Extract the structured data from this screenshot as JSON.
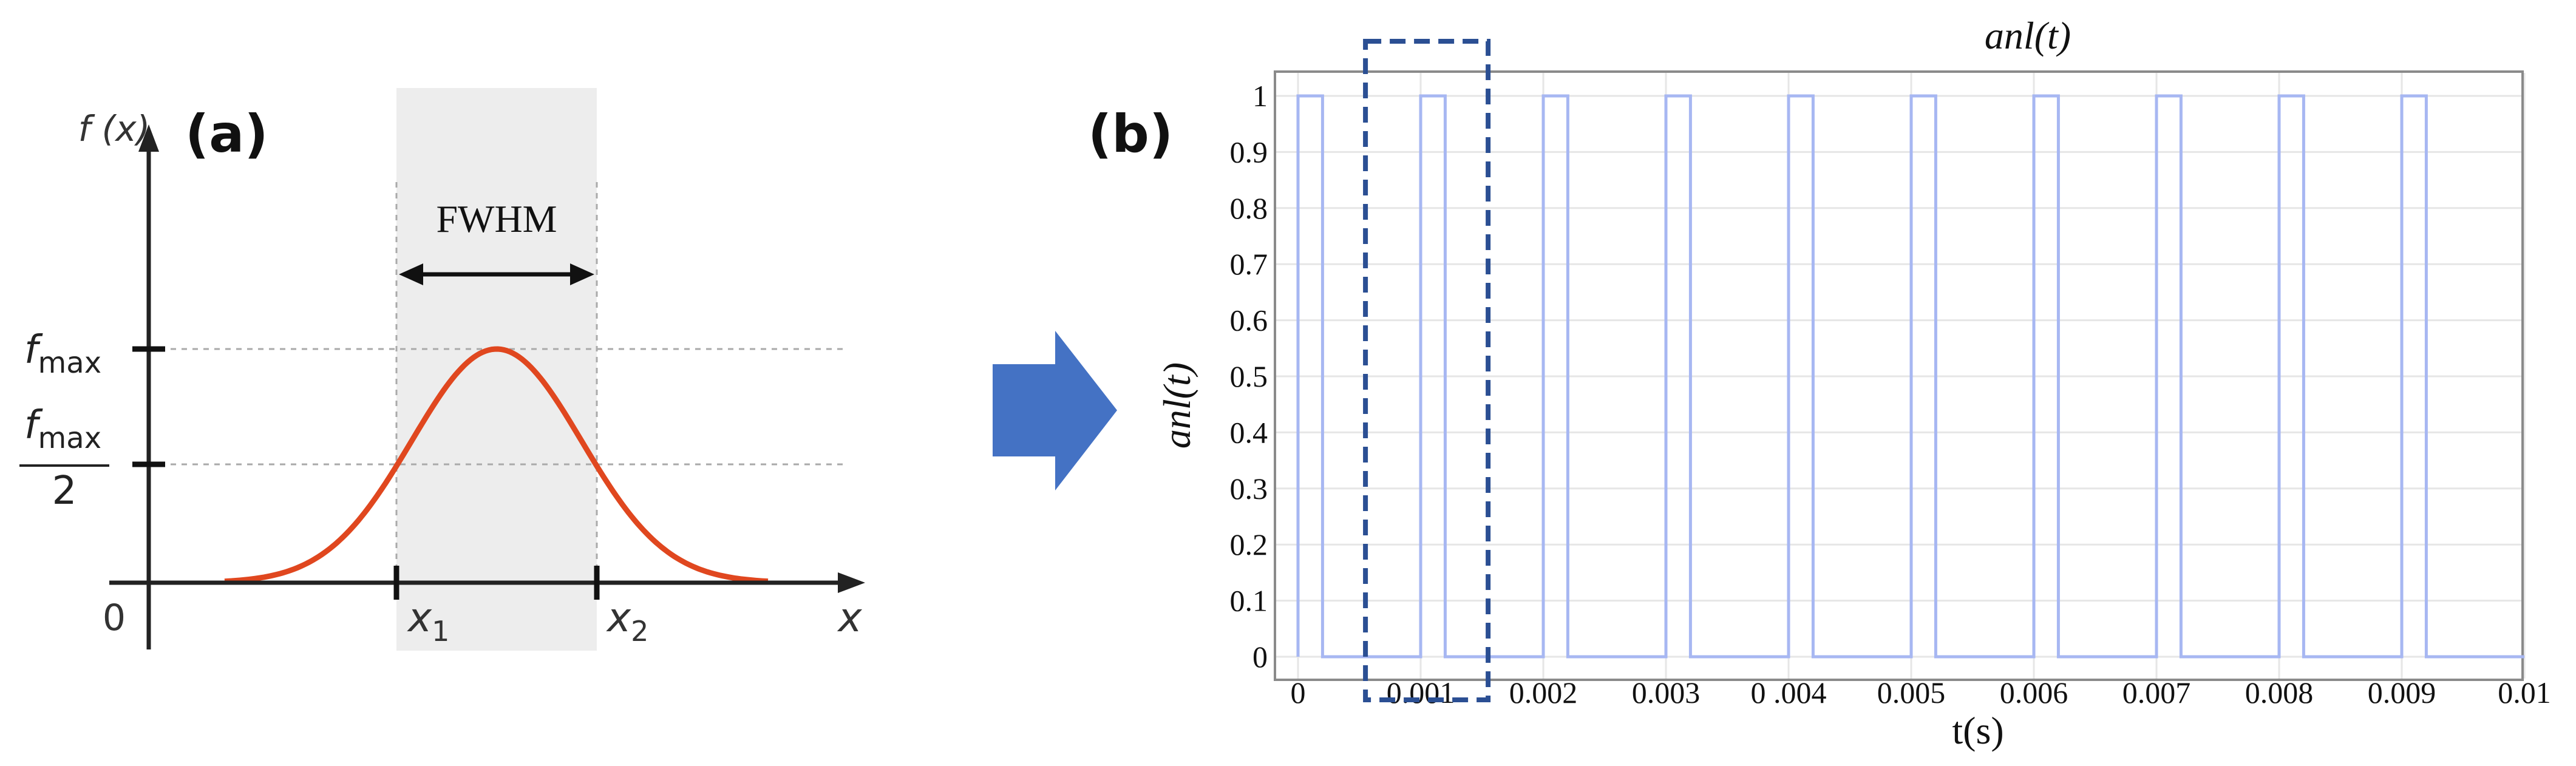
{
  "chart_data": [
    {
      "type": "line",
      "panel_label": "(a)",
      "ylabel": "f (x)",
      "xlabel": "x",
      "annotation": "FWHM",
      "y_ticks": [
        {
          "id": "fmax",
          "label": "f",
          "sub": "max"
        },
        {
          "id": "half",
          "label": "f",
          "sub": "max",
          "denominator": "2"
        }
      ],
      "x_ticks": [
        {
          "id": "x1",
          "label": "x",
          "sub": "1"
        },
        {
          "id": "x2",
          "label": "x",
          "sub": "2"
        }
      ],
      "origin_label": "0",
      "curve": {
        "shape": "gaussian",
        "color": "#e0471f"
      },
      "band_color": "#ededed",
      "grid": false
    },
    {
      "type": "line",
      "panel_label": "(b)",
      "title": "anl(t)",
      "ylabel": "anl(t)",
      "xlabel": "t(s)",
      "xlim": [
        0,
        0.01
      ],
      "ylim": [
        0,
        1
      ],
      "x_tick_labels": [
        "0",
        "0.001",
        "0.002",
        "0.003",
        "0 .004",
        "0.005",
        "0.006",
        "0.007",
        "0.008",
        "0.009",
        "0.01"
      ],
      "y_tick_labels": [
        "0",
        "0.1",
        "0.2",
        "0.3",
        "0.4",
        "0.5",
        "0.6",
        "0.7",
        "0.8",
        "0.9",
        "1"
      ],
      "grid": true,
      "series": [
        {
          "color": "#a7b7f2",
          "pulse_starts": [
            0.0,
            0.001,
            0.002,
            0.003,
            0.004,
            0.005,
            0.006,
            0.007,
            0.008,
            0.009
          ],
          "pulse_width": 0.0002,
          "low": 0,
          "high": 1
        }
      ],
      "highlight": {
        "x_range": [
          0.00055,
          0.00155
        ],
        "style": "dashed box",
        "color": "#2b4f93"
      }
    }
  ],
  "arrow_color": "#4472c4"
}
